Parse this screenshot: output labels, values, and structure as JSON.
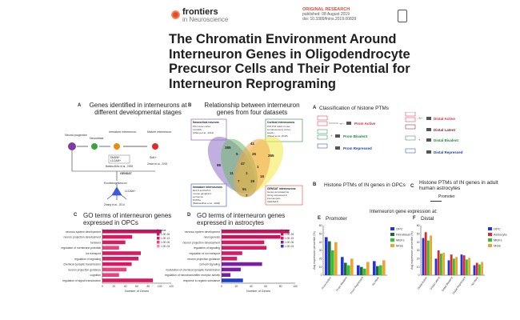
{
  "header": {
    "logo_brand": "frontiers",
    "logo_journal": "in Neuroscience",
    "article_type": "ORIGINAL RESEARCH",
    "meta_line1": "published: 08 August 2019",
    "meta_line2": "doi: 10.3389/fnins.2019.00829",
    "title": "The Chromatin Environment Around Interneuron Genes in Oligodendrocyte Precursor Cells and Their Potential for Interneuron Reprograming"
  },
  "panelA": {
    "letter": "A",
    "title": "Genes identified in interneurons at different developmental stages",
    "labels": {
      "neural_progenitor": "Neural progenitor",
      "neuroblast": "Neuroblast",
      "immature": "Immature interneuron",
      "mature": "Mature interneuron",
      "dlx_l1": "Dlx5/6+",
      "dlx_l2": "L1CAM+",
      "sst": "Sst1+",
      "cite_immature": "Batista-Brito et al., 2008",
      "cite_mature": "Zeisel et al., 2015",
      "gensat": "GENSAT",
      "excitatory": "Excitatory Neuron",
      "l1cam": "L1CAM+",
      "cite_gensat": "Zhang et al., 2014"
    }
  },
  "panelB": {
    "letter": "B",
    "title": "Relationship between interneuron genes from four datasets",
    "box_tl_title": "Neocortical neurons",
    "box_tl_lines": [
      "P8 mouse cortex",
      "L1CAM+",
      "(Zhang et al., 2014)"
    ],
    "box_tr_title": "Cortical interneurons",
    "box_tr_lines": [
      "P21 P31 adult mouse",
      "somatosensory cortex",
      "Gad1+",
      "(Zeisel et al., 2015)"
    ],
    "box_bl_title": "Immature interneurons",
    "box_bl_lines": [
      "E13.5 and E15.5",
      "mouse ganglionic",
      "eminence",
      "Dlx5/6+",
      "(Batista-Brito et al., 2008)"
    ],
    "box_br_title": "GENSAT interneurons",
    "box_br_lines": [
      "Genes annotated as",
      "being expressed in",
      "interneurons",
      "(GENSAT)"
    ],
    "venn_numbers": [
      "385",
      "41",
      "265",
      "98",
      "5",
      "47",
      "26",
      "1",
      "11",
      "1",
      "15",
      "7",
      "19",
      "51",
      "7"
    ]
  },
  "panelA_right": {
    "letter": "A",
    "title": "Classification of histone PTMs",
    "lbl_prom_active": "Prom Active",
    "lbl_prom_bivalent": "Prom Bivalent",
    "lbl_prom_repressed": "Prom Repressed",
    "lbl_distal_active": "Distal Active",
    "lbl_distal_latent": "Distal Latent",
    "lbl_distal_bivalent": "Distal Bivalent",
    "lbl_distal_repressed": "Distal Repressed",
    "colors": {
      "active": "#e2263b",
      "bivalent": "#1d8a3a",
      "repressed": "#1f3ea8",
      "latent": "#7a1f1f"
    }
  },
  "panelB_right": {
    "letter": "B",
    "title": "Histone PTMs of IN genes in OPCs"
  },
  "panelC_right": {
    "letter": "C",
    "title": "Histone PTMs of IN genes in adult human astrocytes",
    "legend": "Promoter"
  },
  "panelC": {
    "letter": "C",
    "title": "GO terms of interneuron genes expressed in OPCs",
    "legend_title": "P-value",
    "legend": [
      "1.0E-26",
      "1.0E-13",
      "1.0E-06",
      "1.0E-03"
    ],
    "xlabel": "Number of Genes"
  },
  "panelD": {
    "letter": "D",
    "title": "GO terms of interneuron genes expressed in astrocytes",
    "legend_title": "P-value",
    "legend": [
      "1.0E-26",
      "1.0E-19",
      "1.0E-06",
      "1.0E-03"
    ],
    "xlabel": "Number of Genes"
  },
  "expr_header": "Interneuron gene expression at:",
  "panelE": {
    "letter": "E",
    "subtitle": "Promoter",
    "ylabel": "Avg expression percentile (%)"
  },
  "panelF": {
    "letter": "F",
    "subtitle": "Distal",
    "ylabel": "Avg expression percentile (%)"
  },
  "chart_data": [
    {
      "type": "bar",
      "orientation": "horizontal",
      "title": "GO terms of interneuron genes expressed in OPCs",
      "xlabel": "Number of Genes",
      "xlim": [
        0,
        120
      ],
      "ticks": [
        "0",
        "20",
        "40",
        "60",
        "80",
        "100",
        "120"
      ],
      "categories": [
        "nervous system development",
        "neuron projection development",
        "behavior",
        "regulation of membrane potential",
        "ion transport",
        "regulation of signaling",
        "chemical synaptic transmission",
        "neuron projection guidance",
        "cognition",
        "regulation of signal transduction"
      ],
      "values": [
        103,
        52,
        40,
        29,
        67,
        63,
        51,
        42,
        29,
        88
      ],
      "color_key": [
        "#c2185b",
        "#d81b60",
        "#ec407a",
        "#f48fb1"
      ],
      "color_index": [
        0,
        1,
        1,
        2,
        1,
        1,
        1,
        2,
        2,
        1
      ]
    },
    {
      "type": "bar",
      "orientation": "horizontal",
      "title": "GO terms of interneuron genes expressed in astrocytes",
      "xlabel": "Number of Genes",
      "xlim": [
        0,
        100
      ],
      "ticks": [
        "0",
        "20",
        "40",
        "60",
        "80",
        "100"
      ],
      "categories": [
        "nervous system development",
        "neurogenesis",
        "neuron projection development",
        "regulation of signaling",
        "regulation of ion transport",
        "neuron projection guidance",
        "cell-cell signaling",
        "modulation of chemical synaptic transmission",
        "regulation of neurotransmitter receptor activity",
        "response to organic substance"
      ],
      "values": [
        92,
        80,
        58,
        61,
        28,
        21,
        55,
        26,
        12,
        29
      ],
      "color_key": [
        "#c2185b",
        "#d81b60",
        "#7b1fa2",
        "#1e40c8"
      ],
      "color_index": [
        0,
        0,
        1,
        1,
        1,
        1,
        2,
        2,
        2,
        3
      ]
    },
    {
      "type": "bar",
      "title": "Promoter",
      "ylabel": "Avg expression percentile (%)",
      "ylim": [
        0,
        60
      ],
      "ticks": [
        "0",
        "10",
        "20",
        "30",
        "40",
        "50",
        "60"
      ],
      "categories": [
        "Prom Active",
        "Prom Bivalent",
        "Prom Repressed",
        "No Mark"
      ],
      "series": [
        {
          "name": "OPC",
          "color": "#2432d6",
          "values": [
            46,
            22,
            12,
            17
          ]
        },
        {
          "name": "Fibroblast",
          "color": "#1c6b36",
          "values": [
            41,
            15,
            10,
            11
          ]
        },
        {
          "name": "MEFs",
          "color": "#33c12d",
          "values": [
            30,
            12,
            8,
            12
          ]
        },
        {
          "name": "MGE",
          "color": "#f0a233",
          "values": [
            40,
            20,
            16,
            18
          ]
        }
      ]
    },
    {
      "type": "bar",
      "title": "Distal",
      "ylabel": "Avg expression percentile (%)",
      "ylim": [
        0,
        60
      ],
      "ticks": [
        "0",
        "10",
        "20",
        "30",
        "40",
        "50",
        "60"
      ],
      "categories": [
        "Distal Active",
        "Distal Latent",
        "Distal Bivalent",
        "Distal Repressed",
        "No Mark"
      ],
      "series": [
        {
          "name": "OPC",
          "color": "#2432d6",
          "values": [
            45,
            20,
            18,
            25,
            12
          ]
        },
        {
          "name": "Astrocyte",
          "color": "#e02a2a",
          "values": [
            52,
            30,
            25,
            24,
            15
          ]
        },
        {
          "name": "MEFs",
          "color": "#33c12d",
          "values": [
            42,
            26,
            20,
            19,
            13
          ]
        },
        {
          "name": "MGE",
          "color": "#f0a233",
          "values": [
            48,
            27,
            22,
            21,
            16
          ]
        }
      ]
    }
  ]
}
